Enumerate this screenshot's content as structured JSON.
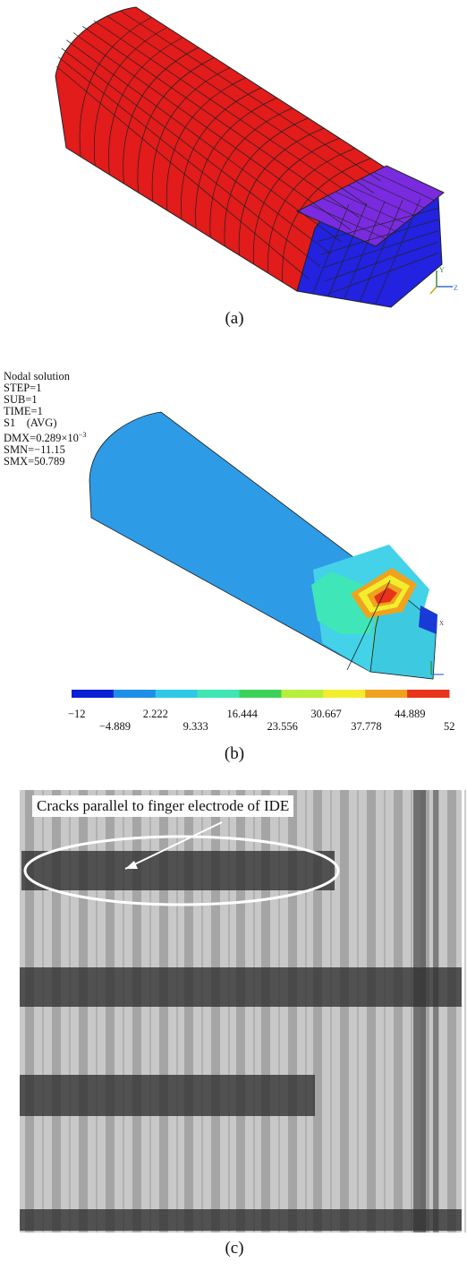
{
  "figure_a": {
    "caption": "(a)",
    "colors": {
      "body": "#e21b1b",
      "end_block": "#2222e0",
      "top_face": "#7a2be0",
      "mesh": "#222222"
    },
    "axis_labels": [
      "Y",
      "Z"
    ]
  },
  "figure_b": {
    "caption": "(b)",
    "info": {
      "line1": "Nodal solution",
      "line2": "STEP=1",
      "line3": "SUB=1",
      "line4": "TIME=1",
      "line5": "S1    (AVG)",
      "line6": "DMX=0.289×10",
      "line6_exp": "−3",
      "line7": "SMN=−11.15",
      "line8": "SMX=50.789"
    },
    "colorbar": {
      "colors": [
        "#0a1fd6",
        "#1e8fe8",
        "#2fc9e8",
        "#3ee6b4",
        "#3cd25a",
        "#b8ef3a",
        "#f2ee2e",
        "#f0a21e",
        "#e8341b"
      ],
      "labels_upper": [
        "−12",
        "2.222",
        "16.444",
        "30.667",
        "44.889"
      ],
      "labels_lower": [
        "−4.889",
        "9.333",
        "23.556",
        "37.778",
        "52"
      ]
    },
    "side_label": "X"
  },
  "figure_c": {
    "caption": "(c)",
    "annotation": "Cracks parallel to finger electrode of IDE"
  }
}
